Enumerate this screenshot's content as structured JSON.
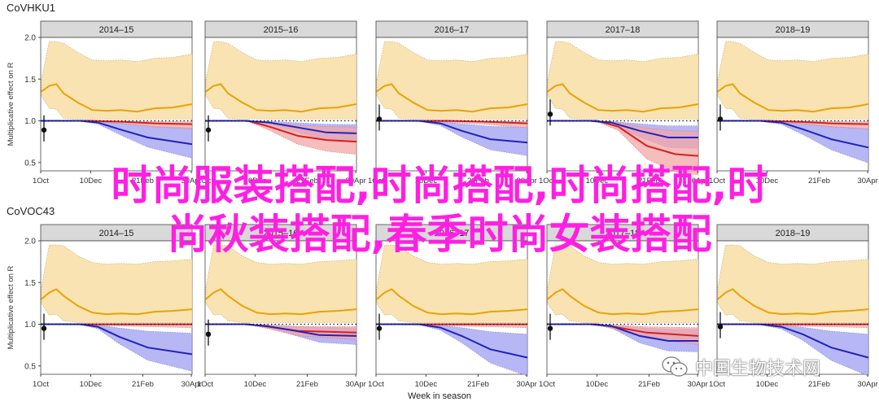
{
  "colors": {
    "season_curve": "#e8a300",
    "season_band": "#f9e3b3",
    "red_curve": "#d42020",
    "red_band": "#f4a6a6",
    "blue_curve": "#2222bb",
    "blue_band": "#aaaaf5",
    "strip_bg": "#d9d9d9",
    "overlay_text": "#ff1fe3"
  },
  "chart_data": [
    {
      "type": "line",
      "title": "CoVHKU1",
      "ylabel": "Multiplicative effect on R",
      "ylim": [
        0.4,
        2.0
      ],
      "y_ticks": [
        "0.5",
        "1.0",
        "1.5",
        "2.0"
      ],
      "x_ticks": [
        "1Oct",
        "10Dec",
        "21Feb",
        "30Apr"
      ],
      "panels": [
        {
          "label": "2014–15",
          "season": [
            [
              1,
              1.35
            ],
            [
              12,
              1.42
            ],
            [
              22,
              1.44
            ],
            [
              32,
              1.33
            ],
            [
              52,
              1.22
            ],
            [
              72,
              1.13
            ],
            [
              92,
              1.12
            ],
            [
              112,
              1.13
            ],
            [
              135,
              1.11
            ],
            [
              160,
              1.15
            ],
            [
              185,
              1.16
            ],
            [
              212,
              1.2
            ]
          ],
          "red": [
            [
              0,
              1.0
            ],
            [
              70,
              1.0
            ],
            [
              110,
              0.99
            ],
            [
              160,
              0.97
            ],
            [
              212,
              0.96
            ]
          ],
          "blue": [
            [
              0,
              1.0
            ],
            [
              55,
              1.0
            ],
            [
              80,
              0.98
            ],
            [
              110,
              0.9
            ],
            [
              150,
              0.8
            ],
            [
              212,
              0.72
            ]
          ],
          "point": 0.89
        },
        {
          "label": "2015–16",
          "season": [
            [
              1,
              1.35
            ],
            [
              12,
              1.42
            ],
            [
              22,
              1.44
            ],
            [
              32,
              1.33
            ],
            [
              52,
              1.22
            ],
            [
              72,
              1.13
            ],
            [
              92,
              1.12
            ],
            [
              112,
              1.13
            ],
            [
              135,
              1.11
            ],
            [
              160,
              1.15
            ],
            [
              185,
              1.16
            ],
            [
              212,
              1.2
            ]
          ],
          "red": [
            [
              0,
              1.0
            ],
            [
              60,
              1.0
            ],
            [
              90,
              0.93
            ],
            [
              130,
              0.82
            ],
            [
              170,
              0.77
            ],
            [
              212,
              0.75
            ]
          ],
          "blue": [
            [
              0,
              1.0
            ],
            [
              55,
              1.0
            ],
            [
              90,
              0.98
            ],
            [
              130,
              0.92
            ],
            [
              170,
              0.86
            ],
            [
              212,
              0.85
            ]
          ],
          "point": 0.89
        },
        {
          "label": "2016–17",
          "season": [
            [
              1,
              1.35
            ],
            [
              12,
              1.42
            ],
            [
              22,
              1.44
            ],
            [
              32,
              1.33
            ],
            [
              52,
              1.22
            ],
            [
              72,
              1.13
            ],
            [
              92,
              1.12
            ],
            [
              112,
              1.13
            ],
            [
              135,
              1.11
            ],
            [
              160,
              1.15
            ],
            [
              185,
              1.16
            ],
            [
              212,
              1.2
            ]
          ],
          "red": [
            [
              0,
              1.0
            ],
            [
              100,
              1.0
            ],
            [
              150,
              0.99
            ],
            [
              212,
              0.97
            ]
          ],
          "blue": [
            [
              0,
              1.0
            ],
            [
              60,
              1.0
            ],
            [
              90,
              0.97
            ],
            [
              120,
              0.88
            ],
            [
              160,
              0.78
            ],
            [
              212,
              0.74
            ]
          ],
          "point": 1.02
        },
        {
          "label": "2017–18",
          "season": [
            [
              1,
              1.35
            ],
            [
              12,
              1.42
            ],
            [
              22,
              1.44
            ],
            [
              32,
              1.33
            ],
            [
              52,
              1.22
            ],
            [
              72,
              1.13
            ],
            [
              92,
              1.12
            ],
            [
              112,
              1.13
            ],
            [
              135,
              1.11
            ],
            [
              160,
              1.15
            ],
            [
              185,
              1.16
            ],
            [
              212,
              1.2
            ]
          ],
          "red": [
            [
              0,
              1.0
            ],
            [
              70,
              1.0
            ],
            [
              100,
              0.93
            ],
            [
              140,
              0.7
            ],
            [
              180,
              0.6
            ],
            [
              212,
              0.58
            ]
          ],
          "blue": [
            [
              0,
              1.0
            ],
            [
              60,
              1.0
            ],
            [
              90,
              0.98
            ],
            [
              130,
              0.88
            ],
            [
              170,
              0.8
            ],
            [
              212,
              0.8
            ]
          ],
          "point": 1.08
        },
        {
          "label": "2018–19",
          "season": [
            [
              1,
              1.35
            ],
            [
              12,
              1.42
            ],
            [
              22,
              1.44
            ],
            [
              32,
              1.33
            ],
            [
              52,
              1.22
            ],
            [
              72,
              1.13
            ],
            [
              92,
              1.12
            ],
            [
              112,
              1.13
            ],
            [
              135,
              1.11
            ],
            [
              160,
              1.15
            ],
            [
              185,
              1.16
            ],
            [
              212,
              1.2
            ]
          ],
          "red": [
            [
              0,
              1.0
            ],
            [
              70,
              1.0
            ],
            [
              110,
              0.99
            ],
            [
              160,
              0.97
            ],
            [
              212,
              0.96
            ]
          ],
          "blue": [
            [
              0,
              1.0
            ],
            [
              60,
              1.0
            ],
            [
              90,
              0.98
            ],
            [
              120,
              0.9
            ],
            [
              160,
              0.78
            ],
            [
              212,
              0.68
            ]
          ],
          "point": 1.02
        }
      ]
    },
    {
      "type": "line",
      "title": "CoVOC43",
      "ylabel": "Multiplicative effect on R",
      "xlabel": "Week in season",
      "ylim": [
        0.4,
        2.0
      ],
      "y_ticks": [
        "0.5",
        "1.0",
        "1.5",
        "2.0"
      ],
      "x_ticks": [
        "1Oct",
        "10Dec",
        "21Feb",
        "30Apr"
      ],
      "panels": [
        {
          "label": "2014–15",
          "season": [
            [
              1,
              1.3
            ],
            [
              12,
              1.38
            ],
            [
              22,
              1.42
            ],
            [
              32,
              1.34
            ],
            [
              52,
              1.22
            ],
            [
              72,
              1.14
            ],
            [
              92,
              1.12
            ],
            [
              112,
              1.13
            ],
            [
              135,
              1.12
            ],
            [
              160,
              1.15
            ],
            [
              185,
              1.16
            ],
            [
              212,
              1.18
            ]
          ],
          "red": [
            [
              0,
              1.0
            ],
            [
              212,
              1.0
            ]
          ],
          "blue": [
            [
              0,
              1.0
            ],
            [
              55,
              1.0
            ],
            [
              80,
              0.97
            ],
            [
              110,
              0.85
            ],
            [
              150,
              0.72
            ],
            [
              212,
              0.64
            ]
          ],
          "point": 0.95
        },
        {
          "label": "2015–16",
          "season": [
            [
              1,
              1.3
            ],
            [
              12,
              1.38
            ],
            [
              22,
              1.42
            ],
            [
              32,
              1.34
            ],
            [
              52,
              1.22
            ],
            [
              72,
              1.14
            ],
            [
              92,
              1.12
            ],
            [
              112,
              1.13
            ],
            [
              135,
              1.12
            ],
            [
              160,
              1.15
            ],
            [
              185,
              1.16
            ],
            [
              212,
              1.18
            ]
          ],
          "red": [
            [
              0,
              1.0
            ],
            [
              60,
              1.0
            ],
            [
              90,
              0.97
            ],
            [
              130,
              0.92
            ],
            [
              212,
              0.9
            ]
          ],
          "blue": [
            [
              0,
              1.0
            ],
            [
              55,
              1.0
            ],
            [
              85,
              0.98
            ],
            [
              120,
              0.93
            ],
            [
              160,
              0.87
            ],
            [
              212,
              0.86
            ]
          ],
          "point": 0.88
        },
        {
          "label": "2016–17",
          "season": [
            [
              1,
              1.3
            ],
            [
              12,
              1.38
            ],
            [
              22,
              1.42
            ],
            [
              32,
              1.34
            ],
            [
              52,
              1.22
            ],
            [
              72,
              1.14
            ],
            [
              92,
              1.12
            ],
            [
              112,
              1.13
            ],
            [
              135,
              1.12
            ],
            [
              160,
              1.15
            ],
            [
              185,
              1.16
            ],
            [
              212,
              1.18
            ]
          ],
          "red": [
            [
              0,
              1.0
            ],
            [
              212,
              1.0
            ]
          ],
          "blue": [
            [
              0,
              1.0
            ],
            [
              60,
              1.0
            ],
            [
              90,
              0.96
            ],
            [
              120,
              0.86
            ],
            [
              160,
              0.7
            ],
            [
              212,
              0.6
            ]
          ],
          "point": 0.95
        },
        {
          "label": "2017–18",
          "season": [
            [
              1,
              1.3
            ],
            [
              12,
              1.38
            ],
            [
              22,
              1.42
            ],
            [
              32,
              1.34
            ],
            [
              52,
              1.22
            ],
            [
              72,
              1.14
            ],
            [
              92,
              1.12
            ],
            [
              112,
              1.13
            ],
            [
              135,
              1.12
            ],
            [
              160,
              1.15
            ],
            [
              185,
              1.16
            ],
            [
              212,
              1.18
            ]
          ],
          "red": [
            [
              0,
              1.0
            ],
            [
              70,
              1.0
            ],
            [
              100,
              0.96
            ],
            [
              140,
              0.9
            ],
            [
              212,
              0.86
            ]
          ],
          "blue": [
            [
              0,
              1.0
            ],
            [
              60,
              1.0
            ],
            [
              90,
              0.98
            ],
            [
              130,
              0.86
            ],
            [
              170,
              0.8
            ],
            [
              212,
              0.8
            ]
          ],
          "point": 0.95
        },
        {
          "label": "2018–19",
          "season": [
            [
              1,
              1.3
            ],
            [
              12,
              1.38
            ],
            [
              22,
              1.42
            ],
            [
              32,
              1.34
            ],
            [
              52,
              1.22
            ],
            [
              72,
              1.14
            ],
            [
              92,
              1.12
            ],
            [
              112,
              1.13
            ],
            [
              135,
              1.12
            ],
            [
              160,
              1.15
            ],
            [
              185,
              1.16
            ],
            [
              212,
              1.18
            ]
          ],
          "red": [
            [
              0,
              1.0
            ],
            [
              212,
              1.0
            ]
          ],
          "blue": [
            [
              0,
              1.0
            ],
            [
              60,
              1.0
            ],
            [
              90,
              0.97
            ],
            [
              120,
              0.88
            ],
            [
              160,
              0.72
            ],
            [
              212,
              0.6
            ]
          ],
          "point": 0.97
        }
      ]
    }
  ],
  "overlay": {
    "line1": "时尚服装搭配,时尚搭配,时尚搭配,时",
    "line2": "尚秋装搭配,春季时尚女装搭配"
  },
  "watermark": {
    "text": "中国生物技术网",
    "icon": "wechat-icon"
  }
}
